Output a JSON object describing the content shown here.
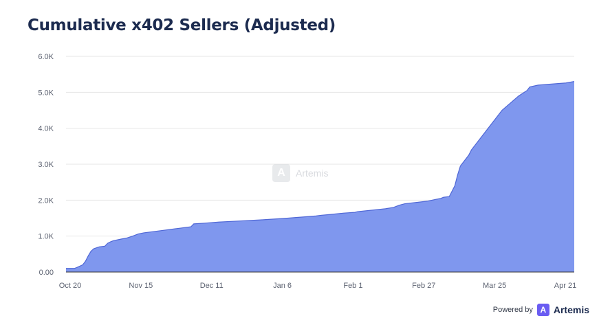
{
  "title": "Cumulative x402 Sellers (Adjusted)",
  "watermark": "Artemis",
  "footer": {
    "powered_by": "Powered by",
    "brand": "Artemis"
  },
  "colors": {
    "fill": "#7f97ee",
    "line": "#4f67d6",
    "title": "#1c2b4f",
    "grid": "#e6e6e6"
  },
  "chart_data": {
    "type": "area",
    "title": "Cumulative x402 Sellers (Adjusted)",
    "xlabel": "",
    "ylabel": "",
    "x_ticks": [
      "Oct 20",
      "Nov 15",
      "Dec 11",
      "Jan 6",
      "Feb 1",
      "Feb 27",
      "Mar 25",
      "Apr 21"
    ],
    "y_ticks": [
      "0.00",
      "1.0K",
      "2.0K",
      "3.0K",
      "4.0K",
      "5.0K",
      "6.0K"
    ],
    "ylim": [
      0,
      6000
    ],
    "x_range_days": [
      0,
      183
    ],
    "grid": true,
    "series": [
      {
        "x": [
          0,
          3,
          4,
          6,
          7,
          8,
          9,
          10,
          12,
          14,
          15,
          16,
          17,
          20,
          22,
          24,
          26,
          28,
          35,
          40,
          45,
          46,
          50,
          55,
          60,
          70,
          80,
          90,
          92,
          95,
          100,
          104,
          105,
          110,
          115,
          118,
          120,
          122,
          130,
          135,
          136,
          138,
          140,
          141,
          142,
          143,
          145,
          146,
          150,
          152,
          155,
          157,
          160,
          163,
          165,
          166,
          167,
          170,
          180,
          183
        ],
        "y": [
          100,
          100,
          130,
          200,
          300,
          450,
          580,
          650,
          700,
          720,
          800,
          840,
          870,
          920,
          950,
          1000,
          1060,
          1090,
          1160,
          1210,
          1260,
          1340,
          1360,
          1390,
          1410,
          1450,
          1500,
          1560,
          1580,
          1600,
          1640,
          1660,
          1680,
          1720,
          1760,
          1800,
          1860,
          1900,
          1970,
          2050,
          2080,
          2100,
          2400,
          2700,
          2950,
          3050,
          3250,
          3400,
          3800,
          4000,
          4300,
          4500,
          4700,
          4900,
          5000,
          5050,
          5150,
          5200,
          5260,
          5300
        ]
      }
    ]
  }
}
